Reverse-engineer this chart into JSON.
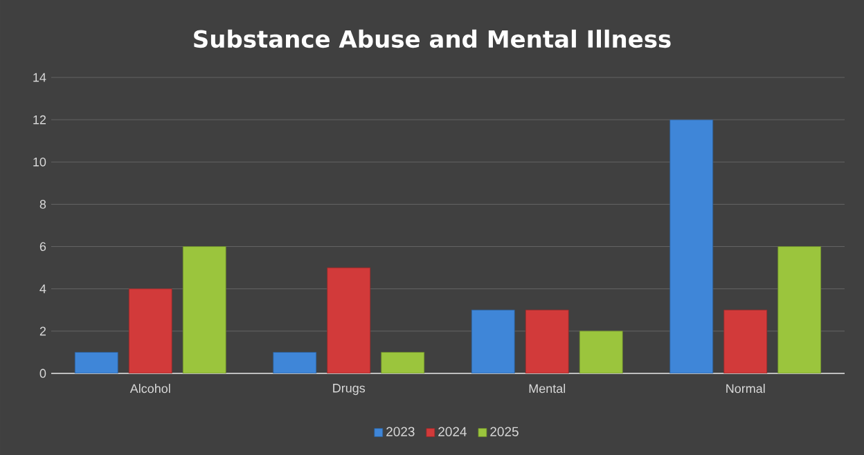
{
  "chart_data": {
    "type": "bar",
    "title": "Substance Abuse and Mental Illness",
    "categories": [
      "Alcohol",
      "Drugs",
      "Mental",
      "Normal"
    ],
    "series": [
      {
        "name": "2023",
        "color": "#3f86d8",
        "values": [
          1,
          1,
          3,
          12
        ]
      },
      {
        "name": "2024",
        "color": "#d23a3a",
        "values": [
          4,
          5,
          3,
          3
        ]
      },
      {
        "name": "2025",
        "color": "#9bc53d",
        "values": [
          6,
          1,
          2,
          6
        ]
      }
    ],
    "ylim": [
      0,
      14
    ],
    "yticks": [
      0,
      2,
      4,
      6,
      8,
      10,
      12,
      14
    ],
    "grid": "y",
    "legend": "bottom"
  }
}
